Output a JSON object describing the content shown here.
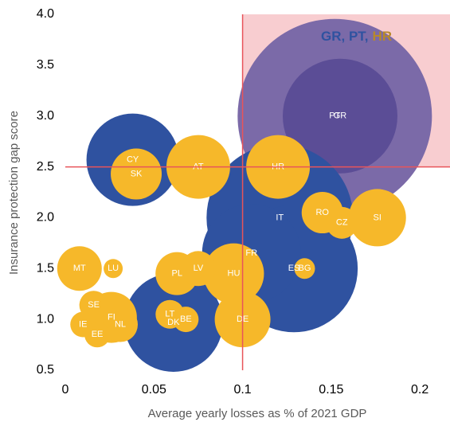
{
  "chart_data": {
    "type": "bubble",
    "x_label": "Average yearly losses as % of 2021 GDP",
    "y_label": "Insurance protection gap score",
    "annotation": [
      {
        "text": "GR, PT,",
        "color": "#2f52a0"
      },
      {
        "text": "HR",
        "color": "#b8892a"
      }
    ],
    "xlim": [
      0,
      0.217
    ],
    "xticks": [
      0,
      0.05,
      0.1,
      0.15,
      0.2
    ],
    "ylim": [
      0.5,
      4.0
    ],
    "yticks": [
      {
        "value": 4,
        "label": "4.0"
      },
      3.5,
      {
        "value": 3,
        "label": "3.0"
      },
      2.5,
      {
        "value": 2,
        "label": "2.0"
      },
      1.5,
      {
        "value": 1,
        "label": "1.0"
      },
      0.5
    ],
    "quadrant": {
      "x": 0.1,
      "y": 2.5,
      "line_color": "#e8545a",
      "fill": "#f8cdd0"
    },
    "label_color": "#ffffff",
    "points": [
      {
        "name": "PT",
        "x": 0.152,
        "y": 3.0,
        "size": 122,
        "color": "#7b6aa8"
      },
      {
        "name": "GR",
        "x": 0.155,
        "y": 3.0,
        "size": 72,
        "color": "#5b4d96"
      },
      {
        "name": "IT",
        "x": 0.121,
        "y": 2.0,
        "size": 92,
        "color": "#2f52a0"
      },
      {
        "name": "ES",
        "x": 0.129,
        "y": 1.5,
        "size": 80,
        "color": "#2f52a0"
      },
      {
        "name": "FR",
        "x": 0.105,
        "y": 1.65,
        "size": 62,
        "color": "#2f52a0"
      },
      {
        "name": "DK",
        "x": 0.061,
        "y": 0.97,
        "size": 62,
        "color": "#2f52a0"
      },
      {
        "name": "CY",
        "x": 0.038,
        "y": 2.57,
        "size": 58,
        "color": "#2f52a0"
      },
      {
        "name": "SK",
        "x": 0.04,
        "y": 2.43,
        "size": 32,
        "color": "#f6b82a"
      },
      {
        "name": "AT",
        "x": 0.075,
        "y": 2.5,
        "size": 40,
        "color": "#f6b82a"
      },
      {
        "name": "HR",
        "x": 0.12,
        "y": 2.5,
        "size": 40,
        "color": "#f6b82a"
      },
      {
        "name": "RO",
        "x": 0.145,
        "y": 2.05,
        "size": 26,
        "color": "#f6b82a"
      },
      {
        "name": "CZ",
        "x": 0.156,
        "y": 1.95,
        "size": 20,
        "color": "#f6b82a"
      },
      {
        "name": "SI",
        "x": 0.176,
        "y": 2.0,
        "size": 36,
        "color": "#f6b82a"
      },
      {
        "name": "BG",
        "x": 0.135,
        "y": 1.5,
        "size": 13,
        "color": "#f6b82a"
      },
      {
        "name": "HU",
        "x": 0.095,
        "y": 1.45,
        "size": 38,
        "color": "#f6b82a"
      },
      {
        "name": "MT",
        "x": 0.008,
        "y": 1.5,
        "size": 28,
        "color": "#f6b82a"
      },
      {
        "name": "LU",
        "x": 0.027,
        "y": 1.5,
        "size": 12,
        "color": "#f6b82a"
      },
      {
        "name": "PL",
        "x": 0.063,
        "y": 1.45,
        "size": 27,
        "color": "#f6b82a"
      },
      {
        "name": "LV",
        "x": 0.075,
        "y": 1.5,
        "size": 22,
        "color": "#f6b82a"
      },
      {
        "name": "DE",
        "x": 0.1,
        "y": 1.0,
        "size": 35,
        "color": "#f6b82a"
      },
      {
        "name": "FI",
        "x": 0.026,
        "y": 1.02,
        "size": 32,
        "color": "#f6b82a"
      },
      {
        "name": "NL",
        "x": 0.031,
        "y": 0.95,
        "size": 22,
        "color": "#f6b82a"
      },
      {
        "name": "SE",
        "x": 0.016,
        "y": 1.14,
        "size": 18,
        "color": "#f6b82a"
      },
      {
        "name": "IE",
        "x": 0.01,
        "y": 0.95,
        "size": 16,
        "color": "#f6b82a"
      },
      {
        "name": "EE",
        "x": 0.018,
        "y": 0.85,
        "size": 16,
        "color": "#f6b82a"
      },
      {
        "name": "LT",
        "x": 0.059,
        "y": 1.05,
        "size": 18,
        "color": "#f6b82a"
      },
      {
        "name": "BE",
        "x": 0.068,
        "y": 1.0,
        "size": 16,
        "color": "#f6b82a"
      }
    ]
  }
}
